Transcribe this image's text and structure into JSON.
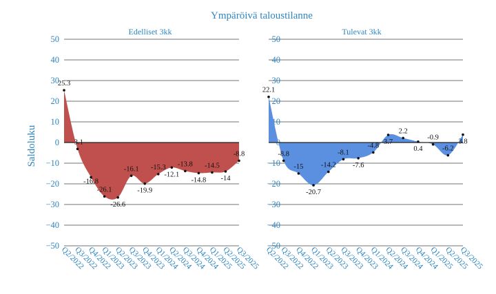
{
  "title": "Ympäröivä taloustilanne",
  "ylabel": "Saldoluku",
  "colors": {
    "left": "#c0504d",
    "right": "#5b8fe0",
    "text": "#2e86c1"
  },
  "chart_data": [
    {
      "type": "area",
      "title": "Edelliset 3kk",
      "ylim": [
        -50,
        50
      ],
      "yticks": [
        -50,
        -40,
        -30,
        -20,
        -10,
        0,
        10,
        20,
        30,
        40,
        50
      ],
      "categories": [
        "Q2/2022",
        "Q3/2022",
        "Q4/2022",
        "Q1/2023",
        "Q2/2023",
        "Q3/2023",
        "Q4/2023",
        "Q1/2024",
        "Q2/2024",
        "Q3/2024",
        "Q4/2024",
        "Q1/2025",
        "Q2/2025",
        "Q3/2025"
      ],
      "values": [
        25.3,
        -3.1,
        -16.8,
        -26.1,
        -26.6,
        -16.1,
        -19.9,
        -15.3,
        -12.1,
        -13.8,
        -14.8,
        -14.5,
        -14,
        -8.8
      ],
      "label_dy": [
        -7,
        -7,
        4,
        -7,
        8,
        -7,
        8,
        -7,
        8,
        -7,
        8,
        -7,
        8,
        -7
      ],
      "color": "#c0504d",
      "grid": true
    },
    {
      "type": "area",
      "title": "Tulevat 3kk",
      "ylim": [
        -50,
        50
      ],
      "yticks": [
        -50,
        -40,
        -30,
        -20,
        -10,
        0,
        10,
        20,
        30,
        40,
        50
      ],
      "categories": [
        "Q2/2022",
        "Q3/2022",
        "Q4/2022",
        "Q1/2023",
        "Q2/2023",
        "Q3/2023",
        "Q4/2023",
        "Q1/2024",
        "Q2/2024",
        "Q3/2024",
        "Q4/2024",
        "Q1/2025",
        "Q2/2025",
        "Q3/2025"
      ],
      "values": [
        22.1,
        -8.8,
        -15,
        -20.7,
        -14.2,
        -8.1,
        -7.6,
        -4.8,
        3.7,
        2.2,
        0.4,
        -0.9,
        -6.2,
        3.8
      ],
      "label_dy": [
        -7,
        -7,
        -7,
        8,
        -7,
        -7,
        8,
        -7,
        8,
        -7,
        8,
        -7,
        -7,
        8
      ],
      "color": "#5b8fe0",
      "grid": true
    }
  ]
}
